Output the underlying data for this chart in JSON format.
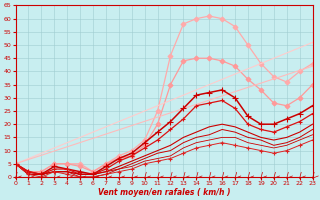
{
  "xlabel": "Vent moyen/en rafales ( km/h )",
  "xlim": [
    0,
    23
  ],
  "ylim": [
    0,
    65
  ],
  "xticks": [
    0,
    1,
    2,
    3,
    4,
    5,
    6,
    7,
    8,
    9,
    10,
    11,
    12,
    13,
    14,
    15,
    16,
    17,
    18,
    19,
    20,
    21,
    22,
    23
  ],
  "yticks": [
    0,
    5,
    10,
    15,
    20,
    25,
    30,
    35,
    40,
    45,
    50,
    55,
    60,
    65
  ],
  "bg_color": "#c8eef0",
  "grid_color": "#a0ccd0",
  "lines": [
    {
      "x": [
        0,
        1,
        2,
        3,
        4,
        5,
        6,
        7,
        8,
        9,
        10,
        11,
        12,
        13,
        14,
        15,
        16,
        17,
        18,
        19,
        20,
        21,
        22,
        23
      ],
      "y": [
        5,
        2,
        2,
        5,
        5,
        5,
        2,
        5,
        8,
        10,
        14,
        25,
        46,
        58,
        60,
        61,
        60,
        57,
        50,
        43,
        38,
        36,
        40,
        43
      ],
      "color": "#ffaaaa",
      "marker": "D",
      "lw": 0.9,
      "ms": 2.5
    },
    {
      "x": [
        0,
        1,
        2,
        3,
        4,
        5,
        6,
        7,
        8,
        9,
        10,
        11,
        12,
        13,
        14,
        15,
        16,
        17,
        18,
        19,
        20,
        21,
        22,
        23
      ],
      "y": [
        5,
        2,
        2,
        5,
        5,
        4,
        2,
        5,
        7,
        8,
        12,
        20,
        35,
        44,
        45,
        45,
        44,
        42,
        37,
        33,
        28,
        27,
        30,
        35
      ],
      "color": "#ff9999",
      "marker": "D",
      "lw": 0.9,
      "ms": 2.5
    },
    {
      "x": [
        0,
        23
      ],
      "y": [
        5,
        51
      ],
      "color": "#ffcccc",
      "marker": null,
      "lw": 0.8,
      "ms": 0
    },
    {
      "x": [
        0,
        23
      ],
      "y": [
        5,
        42
      ],
      "color": "#ffbbbb",
      "marker": null,
      "lw": 0.8,
      "ms": 0
    },
    {
      "x": [
        0,
        1,
        2,
        3,
        4,
        5,
        6,
        7,
        8,
        9,
        10,
        11,
        12,
        13,
        14,
        15,
        16,
        17,
        18,
        19,
        20,
        21,
        22,
        23
      ],
      "y": [
        5,
        2,
        1,
        4,
        3,
        2,
        1,
        4,
        7,
        9,
        13,
        17,
        21,
        26,
        31,
        32,
        33,
        30,
        23,
        20,
        20,
        22,
        24,
        27
      ],
      "color": "#cc0000",
      "marker": "+",
      "lw": 1.1,
      "ms": 4
    },
    {
      "x": [
        0,
        1,
        2,
        3,
        4,
        5,
        6,
        7,
        8,
        9,
        10,
        11,
        12,
        13,
        14,
        15,
        16,
        17,
        18,
        19,
        20,
        21,
        22,
        23
      ],
      "y": [
        5,
        2,
        1,
        3,
        3,
        1,
        1,
        3,
        6,
        8,
        11,
        14,
        18,
        22,
        27,
        28,
        29,
        26,
        20,
        18,
        17,
        19,
        21,
        24
      ],
      "color": "#dd1111",
      "marker": "+",
      "lw": 0.9,
      "ms": 3.5
    },
    {
      "x": [
        0,
        1,
        2,
        3,
        4,
        5,
        6,
        7,
        8,
        9,
        10,
        11,
        12,
        13,
        14,
        15,
        16,
        17,
        18,
        19,
        20,
        21,
        22,
        23
      ],
      "y": [
        5,
        1,
        1,
        2,
        2,
        1,
        1,
        2,
        4,
        6,
        8,
        10,
        12,
        15,
        17,
        19,
        20,
        19,
        17,
        15,
        14,
        15,
        17,
        20
      ],
      "color": "#cc0000",
      "marker": null,
      "lw": 0.8,
      "ms": 0
    },
    {
      "x": [
        0,
        1,
        2,
        3,
        4,
        5,
        6,
        7,
        8,
        9,
        10,
        11,
        12,
        13,
        14,
        15,
        16,
        17,
        18,
        19,
        20,
        21,
        22,
        23
      ],
      "y": [
        5,
        1,
        1,
        2,
        2,
        1,
        1,
        2,
        3,
        5,
        7,
        9,
        10,
        13,
        15,
        16,
        18,
        17,
        15,
        14,
        12,
        13,
        15,
        18
      ],
      "color": "#cc0000",
      "marker": null,
      "lw": 0.7,
      "ms": 0
    },
    {
      "x": [
        0,
        1,
        2,
        3,
        4,
        5,
        6,
        7,
        8,
        9,
        10,
        11,
        12,
        13,
        14,
        15,
        16,
        17,
        18,
        19,
        20,
        21,
        22,
        23
      ],
      "y": [
        5,
        1,
        1,
        2,
        2,
        0,
        0,
        1,
        3,
        4,
        6,
        7,
        8,
        11,
        13,
        14,
        15,
        15,
        13,
        12,
        11,
        12,
        14,
        16
      ],
      "color": "#cc0000",
      "marker": null,
      "lw": 0.6,
      "ms": 0
    },
    {
      "x": [
        0,
        1,
        2,
        3,
        4,
        5,
        6,
        7,
        8,
        9,
        10,
        11,
        12,
        13,
        14,
        15,
        16,
        17,
        18,
        19,
        20,
        21,
        22,
        23
      ],
      "y": [
        5,
        1,
        0,
        2,
        1,
        0,
        0,
        1,
        2,
        3,
        5,
        6,
        7,
        9,
        11,
        12,
        13,
        12,
        11,
        10,
        9,
        10,
        12,
        14
      ],
      "color": "#dd2222",
      "marker": "+",
      "lw": 0.7,
      "ms": 3
    }
  ],
  "wind_arrows": {
    "x": [
      0,
      1,
      2,
      3,
      4,
      5,
      6,
      7,
      8,
      9,
      10,
      11,
      12,
      13,
      14,
      15,
      16,
      17,
      18,
      19,
      20,
      21,
      22,
      23
    ],
    "color": "#cc0000"
  }
}
